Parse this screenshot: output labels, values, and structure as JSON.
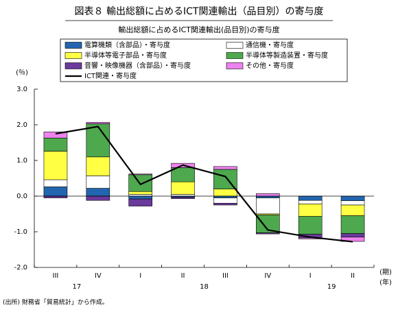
{
  "chart_data": {
    "type": "stacked_bar",
    "title": "図表８ 輸出総額に占めるICT関連輸出（品目別）の寄与度",
    "subtitle": "輸出総額に占めるICT関連輸出(品目別)の寄与度",
    "y_label": "(％)",
    "x_label": "(期)",
    "group_label": "(年)",
    "source": "(出所) 財務省「貿易統計」から作成。",
    "categories": [
      "III",
      "IV",
      "I",
      "II",
      "III",
      "IV",
      "I",
      "II"
    ],
    "years": [
      "17",
      "17",
      "18",
      "18",
      "18",
      "18",
      "19",
      "19"
    ],
    "ylim": [
      -2,
      3
    ],
    "yticks": [
      {
        "value": 3,
        "label": "3.0"
      },
      {
        "value": 2,
        "label": "2.0"
      },
      {
        "value": 1,
        "label": "1.0"
      },
      {
        "value": 0,
        "label": "0.0"
      },
      {
        "value": -1,
        "label": "-1.0"
      },
      {
        "value": -2,
        "label": "-2.0"
      }
    ],
    "series": [
      {
        "name": "電算機類（含部品）・寄与度",
        "color": "#2266b0",
        "values": [
          0.26,
          0.22,
          -0.08,
          -0.03,
          -0.05,
          -0.05,
          -0.12,
          -0.13
        ]
      },
      {
        "name": "通信機・寄与度",
        "color": "#ffffff",
        "values": [
          0.2,
          0.35,
          0.05,
          0.05,
          -0.15,
          -0.45,
          -0.1,
          -0.12
        ]
      },
      {
        "name": "半導体等電子部品・寄与度",
        "color": "#ffff44",
        "values": [
          0.8,
          0.53,
          0.08,
          0.35,
          0.2,
          -0.03,
          -0.35,
          -0.3
        ]
      },
      {
        "name": "半導体等製造装置・寄与度",
        "color": "#4ea84e",
        "values": [
          0.37,
          0.93,
          0.47,
          0.4,
          0.55,
          -0.5,
          -0.5,
          -0.5
        ]
      },
      {
        "name": "音響・映像機器（含部品）・寄与度",
        "color": "#6a3a9c",
        "values": [
          -0.05,
          -0.12,
          -0.2,
          -0.04,
          -0.05,
          -0.03,
          -0.1,
          -0.1
        ]
      },
      {
        "name": "その他・寄与度",
        "color": "#ee82ee",
        "values": [
          0.17,
          0.04,
          0.02,
          0.12,
          0.08,
          0.07,
          -0.03,
          -0.12
        ]
      }
    ],
    "line": {
      "name": "ICT関連・寄与度",
      "color": "#000000",
      "values": [
        1.75,
        1.95,
        0.33,
        0.87,
        0.55,
        -0.95,
        -1.15,
        -1.28
      ]
    }
  }
}
